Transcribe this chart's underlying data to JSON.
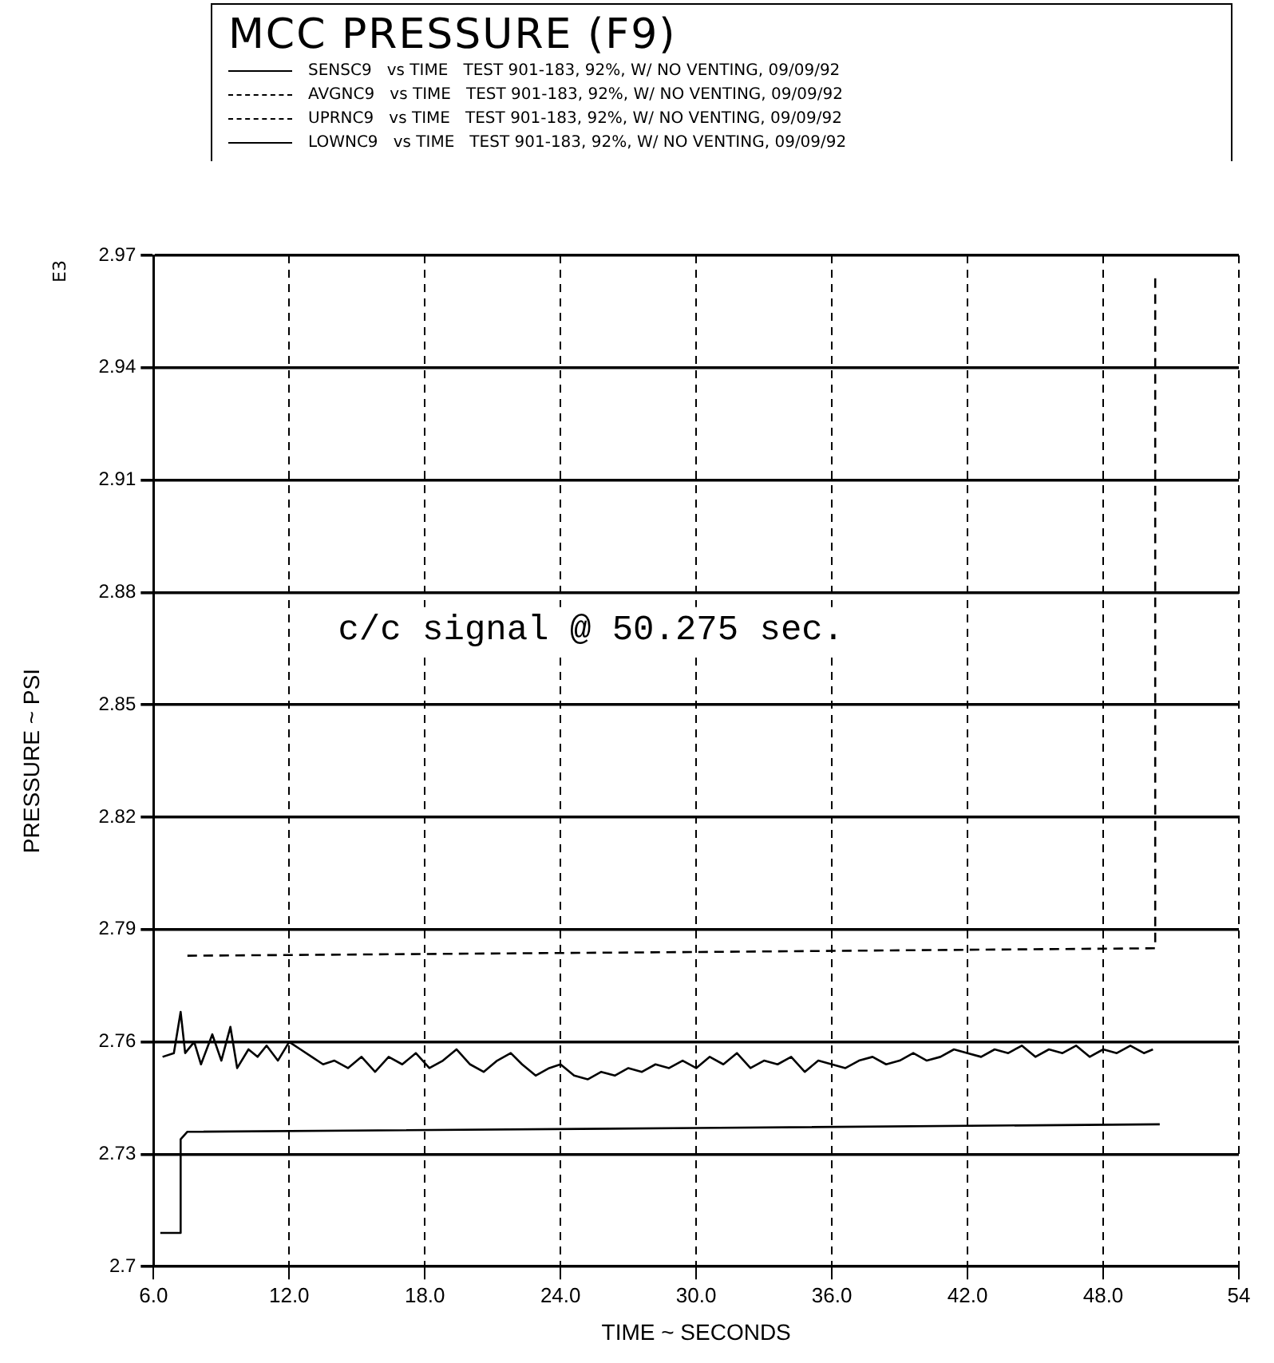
{
  "chart_data": {
    "type": "line",
    "title": "MCC PRESSURE (F9)",
    "xlabel": "TIME ~ SECONDS",
    "ylabel": "PRESSURE ~ PSI",
    "annotations": [
      "E3",
      "c/c signal @ 50.275 sec."
    ],
    "xlim": [
      6,
      54
    ],
    "xticks": [
      {
        "value": 6,
        "label": "6.0"
      },
      {
        "value": 12,
        "label": "12.0"
      },
      {
        "value": 18,
        "label": "18.0"
      },
      {
        "value": 24,
        "label": "24.0"
      },
      {
        "value": 30,
        "label": "30.0"
      },
      {
        "value": 36,
        "label": "36.0"
      },
      {
        "value": 42,
        "label": "42.0"
      },
      {
        "value": 48,
        "label": "48.0"
      },
      54
    ],
    "ylim": [
      2.7,
      2.97
    ],
    "yticks": [
      2.7,
      2.73,
      2.76,
      2.79,
      2.82,
      2.85,
      2.88,
      2.91,
      2.94,
      2.97
    ],
    "grid": true,
    "legend": "top",
    "marker": "none",
    "series": [
      {
        "name": "SENSC9   vs TIME   TEST 901-183, 92%, W/ NO VENTING, 09/09/92",
        "color": "#000000",
        "line_style": "solid",
        "x": [
          6.4,
          6.9,
          7.2,
          7.4,
          7.8,
          8.1,
          8.6,
          9.0,
          9.4,
          9.7,
          10.2,
          10.6,
          11.0,
          11.5,
          12.0,
          12.5,
          13.0,
          13.5,
          14.0,
          14.6,
          15.2,
          15.8,
          16.4,
          17.0,
          17.6,
          18.2,
          18.8,
          19.4,
          20.0,
          20.6,
          21.2,
          21.8,
          22.3,
          22.9,
          23.5,
          24.0,
          24.6,
          25.2,
          25.8,
          26.4,
          27.0,
          27.6,
          28.2,
          28.8,
          29.4,
          30.0,
          30.6,
          31.2,
          31.8,
          32.4,
          33.0,
          33.6,
          34.2,
          34.8,
          35.4,
          36.0,
          36.6,
          37.2,
          37.8,
          38.4,
          39.0,
          39.6,
          40.2,
          40.8,
          41.4,
          42.0,
          42.6,
          43.2,
          43.8,
          44.4,
          45.0,
          45.6,
          46.2,
          46.8,
          47.4,
          48.0,
          48.6,
          49.2,
          49.8,
          50.2
        ],
        "values": [
          2.756,
          2.757,
          2.768,
          2.757,
          2.76,
          2.754,
          2.762,
          2.755,
          2.764,
          2.753,
          2.758,
          2.756,
          2.759,
          2.755,
          2.76,
          2.758,
          2.756,
          2.754,
          2.755,
          2.753,
          2.756,
          2.752,
          2.756,
          2.754,
          2.757,
          2.753,
          2.755,
          2.758,
          2.754,
          2.752,
          2.755,
          2.757,
          2.754,
          2.751,
          2.753,
          2.754,
          2.751,
          2.75,
          2.752,
          2.751,
          2.753,
          2.752,
          2.754,
          2.753,
          2.755,
          2.753,
          2.756,
          2.754,
          2.757,
          2.753,
          2.755,
          2.754,
          2.756,
          2.752,
          2.755,
          2.754,
          2.753,
          2.755,
          2.756,
          2.754,
          2.755,
          2.757,
          2.755,
          2.756,
          2.758,
          2.757,
          2.756,
          2.758,
          2.757,
          2.759,
          2.756,
          2.758,
          2.757,
          2.759,
          2.756,
          2.758,
          2.757,
          2.759,
          2.757,
          2.758
        ]
      },
      {
        "name": "AVGNC9   vs TIME   TEST 901-183, 92%, W/ NO VENTING, 09/09/92",
        "color": "#000000",
        "line_style": "dashed"
      },
      {
        "name": "UPRNC9   vs TIME   TEST 901-183, 92%, W/ NO VENTING, 09/09/92",
        "color": "#000000",
        "line_style": "dashed",
        "x": [
          7.5,
          30,
          50.3,
          50.3
        ],
        "values": [
          2.783,
          2.784,
          2.785,
          2.965
        ]
      },
      {
        "name": "LOWNC9   vs TIME   TEST 901-183, 92%, W/ NO VENTING, 09/09/92",
        "color": "#000000",
        "line_style": "solid",
        "x": [
          6.3,
          7.2,
          7.2,
          7.5,
          30,
          50.5
        ],
        "values": [
          2.709,
          2.709,
          2.734,
          2.736,
          2.737,
          2.738
        ]
      }
    ]
  }
}
